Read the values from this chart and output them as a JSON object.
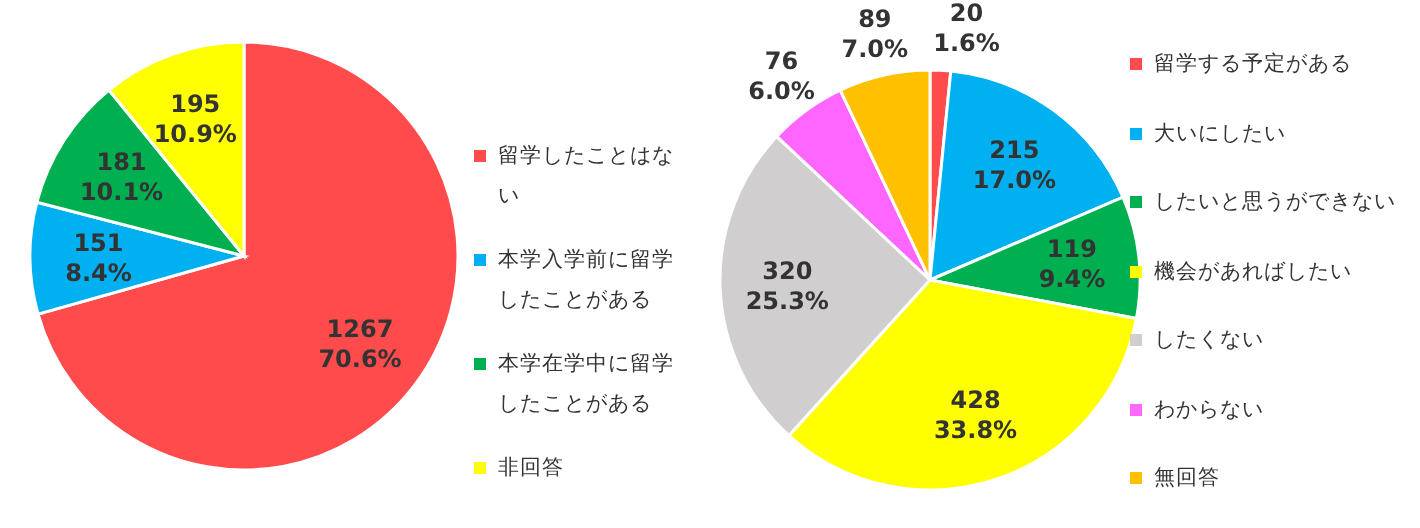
{
  "chart_data": [
    {
      "type": "pie",
      "categories": [
        "留学したことはない",
        "本学入学前に留学したことがある",
        "本学在学中に留学したことがある",
        "非回答"
      ],
      "values": [
        1267,
        151,
        181,
        195
      ],
      "colors": [
        "#ff4b4b",
        "#00b0f0",
        "#00b050",
        "#ffff00"
      ],
      "value_labels": [
        "1267\n70.6%",
        "151\n8.4%",
        "181\n10.1%",
        "195\n10.9%"
      ],
      "legend": "right"
    },
    {
      "type": "pie",
      "categories": [
        "留学する予定がある",
        "大いにしたい",
        "したいと思うができない",
        "機会があればしたい",
        "したくない",
        "わからない",
        "無回答"
      ],
      "values": [
        20,
        215,
        119,
        428,
        320,
        76,
        89
      ],
      "colors": [
        "#ff4b4b",
        "#00b0f0",
        "#00b050",
        "#ffff00",
        "#d0cece",
        "#ff66ff",
        "#ffc000"
      ],
      "value_labels": [
        "20\n1.6%",
        "215\n17.0%",
        "119\n9.4%",
        "428\n33.8%",
        "320\n25.3%",
        "76\n6.0%",
        "89\n7.0%"
      ],
      "legend": "right"
    }
  ]
}
